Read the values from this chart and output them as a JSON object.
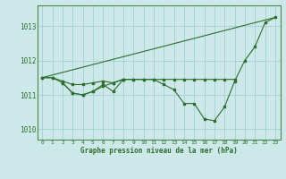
{
  "title": "Graphe pression niveau de la mer (hPa)",
  "background_color": "#cce8e8",
  "grid_color": "#99cccc",
  "line_color": "#2d6e2d",
  "xlim": [
    -0.5,
    23.5
  ],
  "ylim": [
    1009.7,
    1013.6
  ],
  "yticks": [
    1010,
    1011,
    1012,
    1013
  ],
  "xticks": [
    0,
    1,
    2,
    3,
    4,
    5,
    6,
    7,
    8,
    9,
    10,
    11,
    12,
    13,
    14,
    15,
    16,
    17,
    18,
    19,
    20,
    21,
    22,
    23
  ],
  "series1_x": [
    0,
    1,
    2,
    3,
    4,
    5,
    6,
    7,
    8,
    9,
    10,
    11,
    12,
    13,
    14,
    15,
    16,
    17,
    18,
    19,
    20,
    21,
    22,
    23
  ],
  "series1_y": [
    1011.5,
    1011.5,
    1011.35,
    1011.05,
    1011.0,
    1011.1,
    1011.25,
    1011.35,
    1011.45,
    1011.45,
    1011.45,
    1011.45,
    1011.3,
    1011.15,
    1010.75,
    1010.75,
    1010.3,
    1010.25,
    1010.65,
    1011.4,
    1012.0,
    1012.4,
    1013.1,
    1013.25
  ],
  "series2_x": [
    0,
    1,
    2,
    3,
    4,
    5,
    6,
    7,
    8,
    9,
    10,
    11,
    12,
    13,
    14,
    15,
    16,
    17,
    18,
    19
  ],
  "series2_y": [
    1011.5,
    1011.5,
    1011.4,
    1011.3,
    1011.3,
    1011.35,
    1011.4,
    1011.35,
    1011.45,
    1011.45,
    1011.45,
    1011.45,
    1011.45,
    1011.45,
    1011.45,
    1011.45,
    1011.45,
    1011.45,
    1011.45,
    1011.45
  ],
  "series3_x": [
    2,
    3,
    4,
    5,
    6,
    7,
    8
  ],
  "series3_y": [
    1011.35,
    1011.05,
    1011.0,
    1011.1,
    1011.3,
    1011.1,
    1011.45
  ],
  "series4_x": [
    0,
    23
  ],
  "series4_y": [
    1011.5,
    1013.25
  ]
}
